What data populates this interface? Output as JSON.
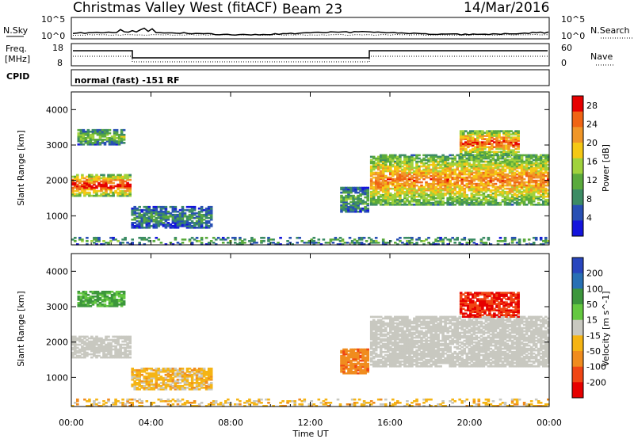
{
  "header": {
    "station": "Christmas Valley West (fitACF)",
    "beam": "Beam 23",
    "date": "14/Mar/2016"
  },
  "top_panels": {
    "nsky_label": "N.Sky",
    "nsearch_label": "N.Search",
    "nsky_ticks": [
      "10^5",
      "10^0"
    ],
    "nsearch_ticks": [
      "10^5",
      "10^0"
    ],
    "freq_label_line1": "Freq.",
    "freq_label_line2": "[MHz]",
    "freq_ticks": [
      "18",
      "8"
    ],
    "nave_label": "Nave",
    "nave_ticks": [
      "60",
      "0"
    ],
    "cpid_label": "CPID",
    "cpid_text": "normal (fast) -151 RF"
  },
  "colors": {
    "power": [
      "#1414dc",
      "#2850b4",
      "#3c8c64",
      "#5aaa3c",
      "#a0d23c",
      "#f5c814",
      "#f09628",
      "#f06414",
      "#e60000"
    ],
    "velocity": [
      "#2846be",
      "#2870b4",
      "#3c963c",
      "#64c840",
      "#c8c8c0",
      "#f5b414",
      "#f08c1e",
      "#f04614",
      "#e60000"
    ],
    "ground_scatter": "#c8c8c0"
  },
  "chart_data": [
    {
      "type": "heatmap",
      "panel": "power",
      "ylabel": "Slant Range [km]",
      "xlabel": "Time UT",
      "x_ticks": [
        "00:00",
        "04:00",
        "08:00",
        "12:00",
        "16:00",
        "20:00",
        "00:00"
      ],
      "y_ticks": [
        "1000",
        "2000",
        "3000",
        "4000"
      ],
      "ylim": [
        180,
        4500
      ],
      "xlim_hours": [
        0,
        24
      ],
      "colorbar": {
        "label": "Power [dB]",
        "ticks": [
          "4",
          "8",
          "12",
          "16",
          "20",
          "24",
          "28"
        ],
        "range": [
          0,
          30
        ]
      },
      "regions": [
        {
          "t0": 0.0,
          "t1": 3.0,
          "r0": 1550,
          "r1": 2150,
          "value": 24
        },
        {
          "t0": 0.3,
          "t1": 2.6,
          "r0": 3000,
          "r1": 3450,
          "value": 12
        },
        {
          "t0": 3.0,
          "t1": 7.0,
          "r0": 650,
          "r1": 1250,
          "value": 8
        },
        {
          "t0": 13.5,
          "t1": 14.9,
          "r0": 1100,
          "r1": 1800,
          "value": 10
        },
        {
          "t0": 15.0,
          "t1": 24.0,
          "r0": 1300,
          "r1": 2700,
          "value": 20
        },
        {
          "t0": 19.5,
          "t1": 22.5,
          "r0": 2700,
          "r1": 3400,
          "value": 22
        },
        {
          "t0": 0.0,
          "t1": 24.0,
          "r0": 180,
          "r1": 380,
          "value": 10
        }
      ]
    },
    {
      "type": "heatmap",
      "panel": "velocity",
      "ylabel": "Slant Range [km]",
      "xlabel": "Time UT",
      "x_ticks": [
        "00:00",
        "04:00",
        "08:00",
        "12:00",
        "16:00",
        "20:00",
        "00:00"
      ],
      "y_ticks": [
        "1000",
        "2000",
        "3000",
        "4000"
      ],
      "ylim": [
        180,
        4500
      ],
      "xlim_hours": [
        0,
        24
      ],
      "colorbar": {
        "label": "Velocity [m s^-1]",
        "ticks": [
          "200",
          "100",
          "50",
          "15",
          "-15",
          "-50",
          "-100",
          "-200"
        ],
        "range": [
          -250,
          250
        ]
      },
      "regions": [
        {
          "t0": 0.0,
          "t1": 3.0,
          "r0": 1550,
          "r1": 2150,
          "value": 0,
          "ground_scatter": true
        },
        {
          "t0": 0.3,
          "t1": 2.6,
          "r0": 3000,
          "r1": 3450,
          "value": 60
        },
        {
          "t0": 3.0,
          "t1": 7.0,
          "r0": 650,
          "r1": 1250,
          "value": -30
        },
        {
          "t0": 13.5,
          "t1": 14.9,
          "r0": 1100,
          "r1": 1800,
          "value": -80
        },
        {
          "t0": 15.0,
          "t1": 24.0,
          "r0": 1300,
          "r1": 2700,
          "value": 0,
          "ground_scatter": true
        },
        {
          "t0": 19.5,
          "t1": 22.5,
          "r0": 2700,
          "r1": 3400,
          "value": -200
        },
        {
          "t0": 0.0,
          "t1": 24.0,
          "r0": 180,
          "r1": 380,
          "value": -30
        }
      ]
    }
  ]
}
